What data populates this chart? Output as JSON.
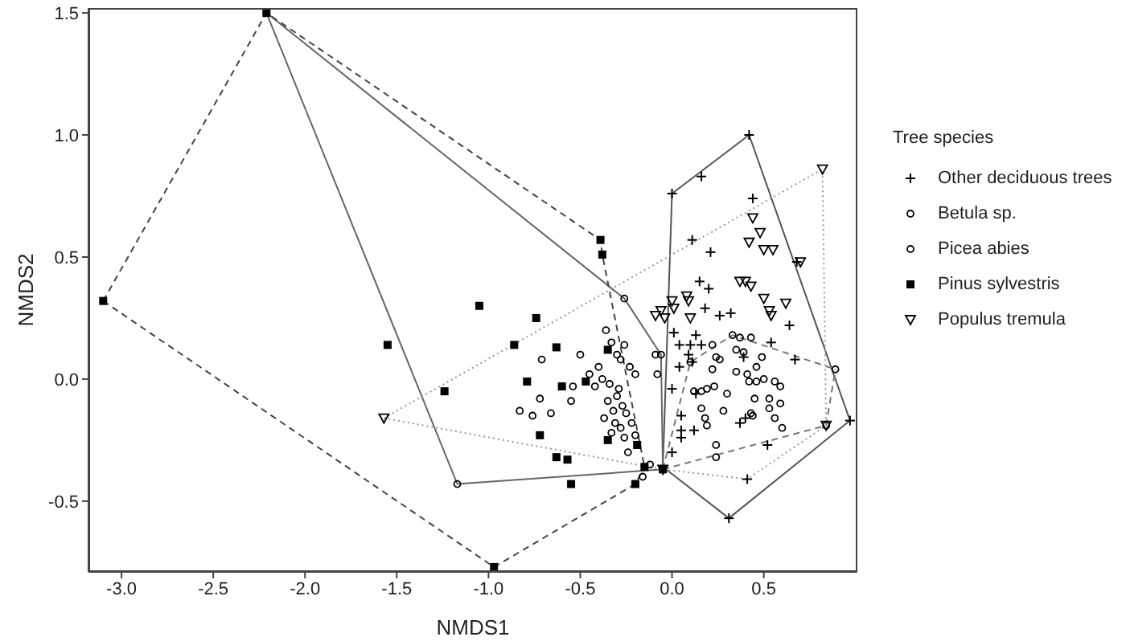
{
  "chart_data": {
    "type": "scatter",
    "xlabel": "NMDS1",
    "ylabel": "NMDS2",
    "legend_title": "Tree species",
    "legend": "right",
    "grid": false,
    "xlim": [
      -3.18,
      1.01
    ],
    "ylim": [
      -0.79,
      1.52
    ],
    "xticks": [
      {
        "value": -3,
        "label": "-3.0"
      },
      -2.5,
      {
        "value": -2,
        "label": "-2.0"
      },
      -1.5,
      {
        "value": -1,
        "label": "-1.0"
      },
      -0.5,
      {
        "value": 0,
        "label": "0.0"
      },
      0.5
    ],
    "yticks": [
      -0.5,
      {
        "value": 0,
        "label": "0.0"
      },
      0.5,
      {
        "value": 1,
        "label": "1.0"
      },
      1.5
    ],
    "series": [
      {
        "name": "Other deciduous trees",
        "color": "#000000",
        "marker": "cross",
        "x": [
          0.42,
          0.16,
          0.0,
          0.44,
          0.11,
          0.21,
          0.68,
          0.15,
          0.2,
          0.18,
          0.26,
          0.32,
          0.01,
          0.13,
          0.04,
          0.1,
          0.16,
          0.09,
          0.11,
          0.04,
          0.39,
          0.54,
          0.64,
          0.67,
          0.0,
          0.13,
          0.05,
          0.05,
          0.05,
          0.12,
          0.37,
          0.4,
          0.52,
          0.0,
          0.97,
          0.31,
          0.41
        ],
        "values": [
          1.0,
          0.83,
          0.76,
          0.74,
          0.57,
          0.52,
          0.48,
          0.4,
          0.37,
          0.29,
          0.26,
          0.27,
          0.19,
          0.18,
          0.14,
          0.14,
          0.14,
          0.1,
          0.07,
          0.05,
          0.09,
          0.15,
          0.22,
          0.08,
          -0.04,
          -0.06,
          -0.15,
          -0.21,
          -0.24,
          -0.21,
          -0.18,
          -0.16,
          -0.27,
          -0.3,
          -0.17,
          -0.57,
          -0.41
        ]
      },
      {
        "name": "Betula sp.",
        "color": "#000000",
        "marker": "circle",
        "x": [
          0.33,
          0.37,
          0.43,
          0.22,
          0.24,
          0.26,
          0.35,
          0.39,
          0.49,
          0.22,
          0.35,
          0.41,
          0.46,
          0.46,
          0.42,
          0.5,
          0.56,
          0.59,
          0.23,
          0.19,
          0.16,
          0.12,
          0.3,
          0.45,
          0.53,
          0.59,
          0.16,
          0.28,
          0.43,
          0.44,
          0.53,
          0.56,
          0.6,
          0.18,
          0.19,
          0.24,
          0.24,
          0.89,
          0.84,
          0.1
        ],
        "values": [
          0.18,
          0.17,
          0.17,
          0.14,
          0.09,
          0.08,
          0.12,
          0.11,
          0.09,
          0.04,
          0.03,
          0.02,
          0.05,
          -0.01,
          -0.01,
          0.0,
          -0.01,
          -0.03,
          -0.03,
          -0.04,
          -0.05,
          -0.05,
          -0.06,
          -0.08,
          -0.08,
          -0.1,
          -0.12,
          -0.13,
          -0.14,
          -0.15,
          -0.12,
          -0.16,
          -0.2,
          -0.16,
          -0.19,
          -0.27,
          -0.32,
          0.04,
          -0.19,
          0.07
        ]
      },
      {
        "name": "Picea abies",
        "color": "#000000",
        "marker": "circle",
        "x": [
          -0.36,
          -0.33,
          -0.26,
          -0.3,
          -0.28,
          -0.4,
          -0.45,
          -0.38,
          -0.42,
          -0.34,
          -0.29,
          -0.3,
          -0.35,
          -0.27,
          -0.32,
          -0.25,
          -0.37,
          -0.31,
          -0.28,
          -0.33,
          -0.26,
          -0.22,
          -0.2,
          -0.54,
          -0.5,
          -0.55,
          -0.66,
          -0.76,
          -0.72,
          -0.83,
          -0.71,
          -0.24,
          -0.16,
          -0.23,
          -0.2,
          -0.09,
          -0.08,
          -0.12,
          -0.26,
          -2.21,
          -1.17,
          -0.06
        ],
        "values": [
          0.2,
          0.15,
          0.14,
          0.1,
          0.08,
          0.05,
          0.02,
          0.0,
          -0.03,
          -0.02,
          -0.04,
          -0.07,
          -0.09,
          -0.11,
          -0.13,
          -0.14,
          -0.16,
          -0.18,
          -0.2,
          -0.22,
          -0.24,
          -0.18,
          -0.23,
          -0.03,
          0.1,
          -0.09,
          -0.14,
          -0.15,
          -0.08,
          -0.13,
          0.08,
          -0.3,
          -0.4,
          0.05,
          0.02,
          0.1,
          0.02,
          -0.35,
          0.33,
          1.5,
          -0.43,
          0.1
        ]
      },
      {
        "name": "Pinus sylvestris",
        "color": "#000000",
        "marker": "square",
        "x": [
          -0.39,
          -0.38,
          -1.05,
          -0.74,
          -1.55,
          -0.86,
          -1.24,
          -0.63,
          -0.79,
          -0.6,
          -0.47,
          -0.72,
          -0.63,
          -0.57,
          -0.35,
          -0.19,
          -0.15,
          -0.55,
          -0.2,
          -0.97,
          -2.21,
          -3.1,
          -0.05,
          -0.35
        ],
        "values": [
          0.57,
          0.51,
          0.3,
          0.25,
          0.14,
          0.14,
          -0.05,
          0.13,
          -0.01,
          -0.03,
          -0.01,
          -0.23,
          -0.32,
          -0.33,
          -0.25,
          -0.27,
          -0.36,
          -0.43,
          -0.43,
          -0.77,
          1.5,
          0.32,
          -0.37,
          0.12
        ]
      },
      {
        "name": "Populus tremula",
        "color": "#000000",
        "marker": "triangle",
        "x": [
          0.82,
          0.44,
          0.42,
          0.48,
          0.5,
          0.55,
          0.7,
          0.37,
          0.4,
          0.43,
          0.5,
          0.62,
          0.53,
          0.54,
          0.08,
          0.09,
          0.1,
          0.01,
          -0.04,
          -0.09,
          -0.06,
          0.0,
          -1.57,
          0.84,
          -0.05
        ],
        "values": [
          0.86,
          0.66,
          0.56,
          0.6,
          0.53,
          0.53,
          0.48,
          0.4,
          0.4,
          0.38,
          0.33,
          0.31,
          0.28,
          0.26,
          0.34,
          0.32,
          0.25,
          0.29,
          0.25,
          0.26,
          0.28,
          0.32,
          -0.16,
          -0.19,
          -0.37
        ]
      },
      {
        "type": "line",
        "color": "#555555",
        "line_style": "solid",
        "marker": "none",
        "x": [
          -0.05,
          0.0,
          0.42,
          0.97
        ],
        "values": [
          -0.36,
          0.76,
          1.0,
          -0.17
        ]
      },
      {
        "type": "line",
        "color": "#555555",
        "line_style": "solid",
        "marker": "none",
        "x": [
          -0.05,
          0.31,
          0.97
        ],
        "values": [
          -0.36,
          -0.57,
          -0.17
        ]
      },
      {
        "type": "line",
        "color": "#777777",
        "line_style": "dashed",
        "marker": "none",
        "x": [
          -0.05,
          0.1,
          0.33,
          0.89
        ],
        "values": [
          -0.37,
          0.07,
          0.18,
          0.04
        ]
      },
      {
        "type": "line",
        "color": "#777777",
        "line_style": "dashed",
        "marker": "none",
        "x": [
          -0.05,
          0.84,
          0.89
        ],
        "values": [
          -0.37,
          -0.19,
          0.04
        ]
      },
      {
        "type": "line",
        "color": "#666666",
        "line_style": "solid",
        "marker": "none",
        "x": [
          -2.21,
          -0.26,
          -0.06,
          -0.05
        ],
        "values": [
          1.5,
          0.33,
          0.1,
          -0.37
        ]
      },
      {
        "type": "line",
        "color": "#666666",
        "line_style": "solid",
        "marker": "none",
        "x": [
          -2.21,
          -1.17,
          -0.05
        ],
        "values": [
          1.5,
          -0.43,
          -0.37
        ]
      },
      {
        "type": "line",
        "color": "#444444",
        "line_style": "dashed",
        "marker": "none",
        "x": [
          -3.1,
          -2.21,
          -0.39,
          -0.38,
          -0.15
        ],
        "values": [
          0.32,
          1.5,
          0.57,
          0.51,
          -0.36
        ]
      },
      {
        "type": "line",
        "color": "#444444",
        "line_style": "dashed",
        "marker": "none",
        "x": [
          -3.1,
          -0.97,
          -0.2,
          -0.15
        ],
        "values": [
          0.32,
          -0.77,
          -0.43,
          -0.36
        ]
      },
      {
        "type": "line",
        "color": "#999999",
        "line_style": "dotted",
        "marker": "none",
        "x": [
          -1.57,
          0.82,
          0.84
        ],
        "values": [
          -0.16,
          0.86,
          -0.19
        ]
      },
      {
        "type": "line",
        "color": "#999999",
        "line_style": "dotted",
        "marker": "none",
        "x": [
          -1.57,
          -0.05,
          0.41,
          0.84
        ],
        "values": [
          -0.16,
          -0.37,
          -0.41,
          -0.19
        ]
      }
    ]
  }
}
